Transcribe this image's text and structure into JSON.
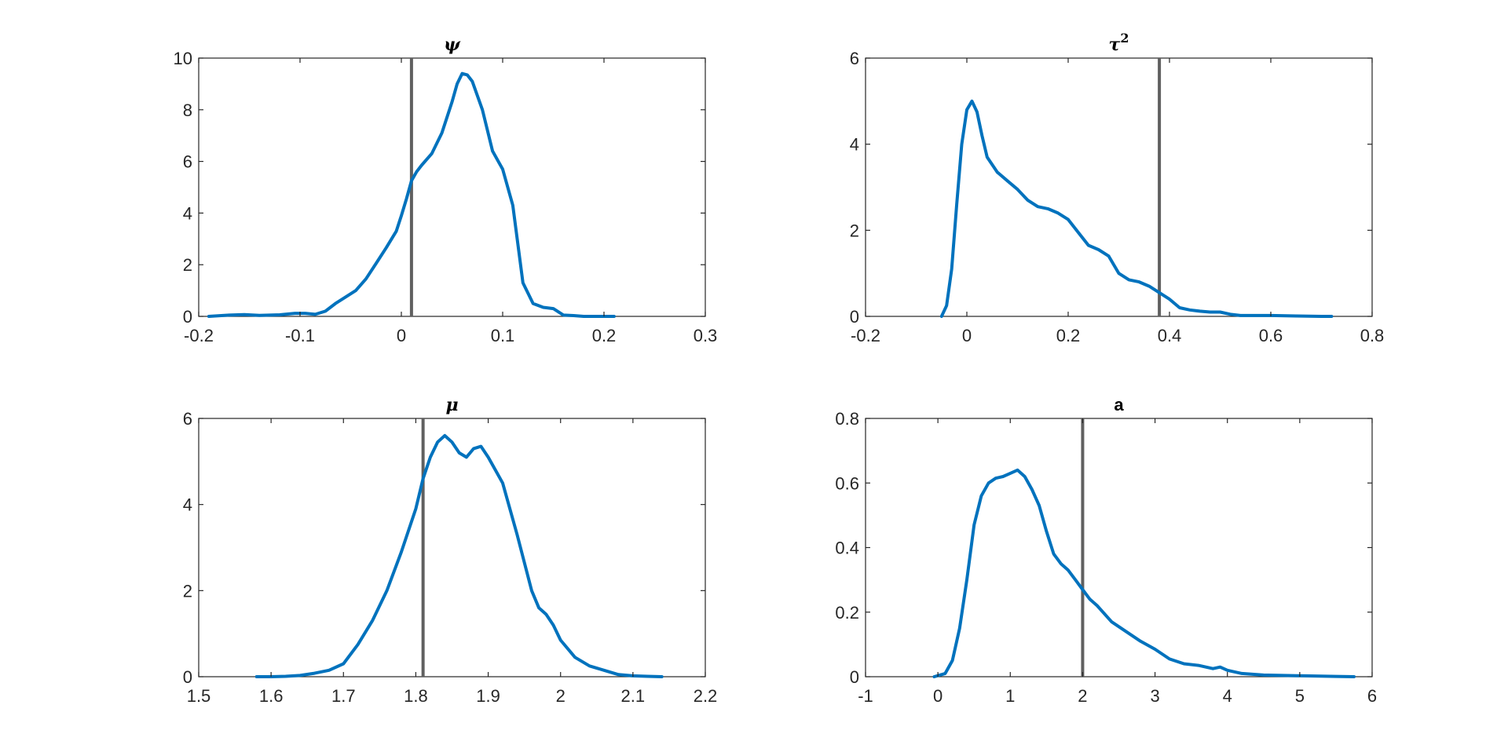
{
  "colors": {
    "curve": "#0072BD",
    "reference_line": "#606060",
    "axes": "#262626"
  },
  "chart_data": [
    {
      "type": "line",
      "title": "ψ",
      "title_style": "italic",
      "xlim": [
        -0.2,
        0.3
      ],
      "ylim": [
        0,
        10
      ],
      "xticks": [
        -0.2,
        -0.1,
        0,
        0.1,
        0.2,
        0.3
      ],
      "xtick_labels": [
        "-0.2",
        "-0.1",
        "0",
        "0.1",
        "0.2",
        "0.3"
      ],
      "yticks": [
        0,
        2,
        4,
        6,
        8,
        10
      ],
      "ytick_labels": [
        "0",
        "2",
        "4",
        "6",
        "8",
        "10"
      ],
      "reference_line_x": 0.01,
      "x": [
        -0.19,
        -0.17,
        -0.155,
        -0.14,
        -0.12,
        -0.105,
        -0.095,
        -0.085,
        -0.075,
        -0.065,
        -0.055,
        -0.045,
        -0.035,
        -0.025,
        -0.015,
        -0.005,
        0.0,
        0.005,
        0.01,
        0.015,
        0.02,
        0.03,
        0.04,
        0.05,
        0.055,
        0.06,
        0.065,
        0.07,
        0.08,
        0.09,
        0.1,
        0.11,
        0.12,
        0.13,
        0.14,
        0.15,
        0.16,
        0.17,
        0.18,
        0.19,
        0.2,
        0.21
      ],
      "y": [
        0.0,
        0.05,
        0.07,
        0.04,
        0.06,
        0.12,
        0.12,
        0.08,
        0.2,
        0.5,
        0.75,
        1.0,
        1.45,
        2.05,
        2.65,
        3.3,
        3.9,
        4.55,
        5.25,
        5.6,
        5.85,
        6.3,
        7.1,
        8.3,
        9.0,
        9.4,
        9.35,
        9.1,
        8.0,
        6.4,
        5.7,
        4.3,
        1.3,
        0.5,
        0.35,
        0.3,
        0.05,
        0.03,
        0.0,
        0.0,
        0.0,
        0.0
      ]
    },
    {
      "type": "line",
      "title": "τ²",
      "title_base": "τ",
      "title_sup": "2",
      "xlim": [
        -0.2,
        0.8
      ],
      "ylim": [
        0,
        6
      ],
      "xticks": [
        -0.2,
        0,
        0.2,
        0.4,
        0.6,
        0.8
      ],
      "xtick_labels": [
        "-0.2",
        "0",
        "0.2",
        "0.4",
        "0.6",
        "0.8"
      ],
      "yticks": [
        0,
        2,
        4,
        6
      ],
      "ytick_labels": [
        "0",
        "2",
        "4",
        "6"
      ],
      "reference_line_x": 0.38,
      "x": [
        -0.05,
        -0.04,
        -0.03,
        -0.02,
        -0.01,
        0.0,
        0.01,
        0.02,
        0.03,
        0.04,
        0.06,
        0.08,
        0.1,
        0.12,
        0.14,
        0.16,
        0.18,
        0.2,
        0.22,
        0.24,
        0.26,
        0.28,
        0.3,
        0.32,
        0.34,
        0.36,
        0.38,
        0.4,
        0.42,
        0.44,
        0.46,
        0.48,
        0.5,
        0.52,
        0.54,
        0.56,
        0.6,
        0.65,
        0.7,
        0.72
      ],
      "y": [
        0.0,
        0.25,
        1.1,
        2.6,
        4.0,
        4.8,
        5.0,
        4.75,
        4.2,
        3.7,
        3.35,
        3.15,
        2.95,
        2.7,
        2.55,
        2.5,
        2.4,
        2.25,
        1.95,
        1.65,
        1.55,
        1.4,
        1.0,
        0.85,
        0.8,
        0.7,
        0.55,
        0.4,
        0.2,
        0.15,
        0.12,
        0.1,
        0.1,
        0.05,
        0.02,
        0.02,
        0.02,
        0.01,
        0.0,
        0.0
      ]
    },
    {
      "type": "line",
      "title": "μ",
      "title_style": "italic",
      "xlim": [
        1.5,
        2.2
      ],
      "ylim": [
        0,
        6
      ],
      "xticks": [
        1.5,
        1.6,
        1.7,
        1.8,
        1.9,
        2.0,
        2.1,
        2.2
      ],
      "xtick_labels": [
        "1.5",
        "1.6",
        "1.7",
        "1.8",
        "1.9",
        "2",
        "2.1",
        "2.2"
      ],
      "yticks": [
        0,
        2,
        4,
        6
      ],
      "ytick_labels": [
        "0",
        "2",
        "4",
        "6"
      ],
      "reference_line_x": 1.81,
      "x": [
        1.58,
        1.6,
        1.62,
        1.64,
        1.66,
        1.68,
        1.7,
        1.72,
        1.74,
        1.76,
        1.78,
        1.8,
        1.81,
        1.82,
        1.83,
        1.84,
        1.85,
        1.86,
        1.87,
        1.88,
        1.89,
        1.9,
        1.92,
        1.94,
        1.96,
        1.97,
        1.98,
        1.99,
        2.0,
        2.02,
        2.04,
        2.06,
        2.08,
        2.1,
        2.12,
        2.14
      ],
      "y": [
        0.0,
        0.0,
        0.01,
        0.03,
        0.08,
        0.15,
        0.3,
        0.75,
        1.3,
        2.0,
        2.9,
        3.9,
        4.6,
        5.1,
        5.45,
        5.6,
        5.45,
        5.2,
        5.1,
        5.3,
        5.35,
        5.1,
        4.5,
        3.3,
        2.0,
        1.6,
        1.45,
        1.2,
        0.85,
        0.45,
        0.25,
        0.15,
        0.05,
        0.02,
        0.01,
        0.0
      ]
    },
    {
      "type": "line",
      "title": "a",
      "title_style": "bold",
      "xlim": [
        -1,
        6
      ],
      "ylim": [
        0,
        0.8
      ],
      "xticks": [
        -1,
        0,
        1,
        2,
        3,
        4,
        5,
        6
      ],
      "xtick_labels": [
        "-1",
        "0",
        "1",
        "2",
        "3",
        "4",
        "5",
        "6"
      ],
      "yticks": [
        0,
        0.2,
        0.4,
        0.6,
        0.8
      ],
      "ytick_labels": [
        "0",
        "0.2",
        "0.4",
        "0.6",
        "0.8"
      ],
      "reference_line_x": 2.0,
      "x": [
        -0.05,
        0.1,
        0.2,
        0.3,
        0.4,
        0.5,
        0.6,
        0.7,
        0.8,
        0.9,
        1.0,
        1.1,
        1.2,
        1.3,
        1.4,
        1.5,
        1.6,
        1.7,
        1.8,
        1.9,
        2.0,
        2.1,
        2.2,
        2.4,
        2.6,
        2.8,
        3.0,
        3.2,
        3.4,
        3.6,
        3.8,
        3.9,
        4.0,
        4.2,
        4.5,
        5.0,
        5.5,
        5.75
      ],
      "y": [
        0.0,
        0.01,
        0.05,
        0.15,
        0.3,
        0.47,
        0.56,
        0.6,
        0.615,
        0.62,
        0.63,
        0.64,
        0.62,
        0.58,
        0.53,
        0.45,
        0.38,
        0.35,
        0.33,
        0.3,
        0.27,
        0.24,
        0.22,
        0.17,
        0.14,
        0.11,
        0.085,
        0.055,
        0.04,
        0.035,
        0.025,
        0.03,
        0.02,
        0.01,
        0.005,
        0.003,
        0.001,
        0.0
      ]
    }
  ]
}
